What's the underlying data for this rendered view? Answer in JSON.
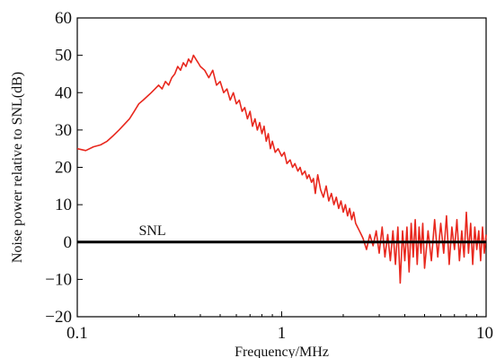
{
  "chart_data": {
    "type": "line",
    "xlabel": "Frequency/MHz",
    "ylabel": "Noise power relative to SNL(dB)",
    "xscale": "log",
    "xlim": [
      0.1,
      10
    ],
    "ylim": [
      -20,
      60
    ],
    "xticks": [
      0.1,
      1,
      10
    ],
    "xtick_labels": [
      "0.1",
      "1",
      "10"
    ],
    "yticks": [
      -20,
      -10,
      0,
      10,
      20,
      30,
      40,
      50,
      60
    ],
    "ytick_labels": [
      "−20",
      "−10",
      "0",
      "10",
      "20",
      "30",
      "40",
      "50",
      "60"
    ],
    "grid": false,
    "legend": "none",
    "colors": {
      "series": "#e8281e",
      "reference": "#000000"
    },
    "series": [
      {
        "x": [
          0.1,
          0.11,
          0.12,
          0.13,
          0.14,
          0.15,
          0.16,
          0.17,
          0.18,
          0.19,
          0.2,
          0.21,
          0.22,
          0.23,
          0.24,
          0.25,
          0.26,
          0.27,
          0.28,
          0.29,
          0.3,
          0.31,
          0.32,
          0.33,
          0.34,
          0.35,
          0.36,
          0.37,
          0.38,
          0.39,
          0.4,
          0.42,
          0.44,
          0.46,
          0.48,
          0.5,
          0.52,
          0.54,
          0.56,
          0.58,
          0.6,
          0.62,
          0.64,
          0.66,
          0.68,
          0.7,
          0.72,
          0.74,
          0.76,
          0.78,
          0.8,
          0.82,
          0.84,
          0.86,
          0.88,
          0.9,
          0.93,
          0.96,
          1.0,
          1.03,
          1.06,
          1.1,
          1.13,
          1.16,
          1.2,
          1.23,
          1.26,
          1.3,
          1.33,
          1.36,
          1.4,
          1.43,
          1.46,
          1.5,
          1.55,
          1.6,
          1.65,
          1.7,
          1.75,
          1.8,
          1.85,
          1.9,
          1.95,
          2.0,
          2.05,
          2.1,
          2.15,
          2.2,
          2.25,
          2.3,
          2.35,
          2.4,
          2.45,
          2.5,
          2.6,
          2.7,
          2.8,
          2.9,
          3.0,
          3.1,
          3.2,
          3.3,
          3.4,
          3.5,
          3.6,
          3.7,
          3.8,
          3.9,
          4.0,
          4.1,
          4.2,
          4.3,
          4.4,
          4.5,
          4.6,
          4.7,
          4.8,
          4.9,
          5.0,
          5.2,
          5.4,
          5.6,
          5.8,
          6.0,
          6.2,
          6.4,
          6.6,
          6.8,
          7.0,
          7.2,
          7.4,
          7.6,
          7.8,
          8.0,
          8.2,
          8.4,
          8.6,
          8.8,
          9.0,
          9.2,
          9.4,
          9.6,
          9.8,
          10.0
        ],
        "y": [
          25,
          24.5,
          25.5,
          26,
          27,
          28.5,
          30,
          31.5,
          33,
          35,
          37,
          38,
          39,
          40,
          41,
          42,
          41,
          43,
          42,
          44,
          45,
          47,
          46,
          48,
          47,
          49,
          48,
          50,
          49,
          48,
          47,
          46,
          44,
          46,
          42,
          43,
          40,
          41,
          38,
          40,
          37,
          38,
          35,
          36,
          33,
          35,
          31,
          33,
          30,
          32,
          29,
          31,
          27,
          29,
          25,
          27,
          24,
          25,
          23,
          24,
          21,
          22,
          20,
          21,
          19,
          20,
          18,
          19,
          17,
          18,
          16,
          17,
          13,
          18,
          14,
          12,
          15,
          11,
          13,
          10,
          12,
          9,
          11,
          8,
          10,
          7,
          9,
          6,
          8,
          5,
          4,
          3,
          2,
          1,
          -2,
          2,
          -1,
          3,
          -3,
          4,
          -4,
          2,
          -5,
          3,
          -6,
          4,
          -11,
          3,
          -5,
          4,
          -8,
          5,
          -4,
          6,
          -6,
          4,
          -3,
          5,
          -7,
          3,
          -5,
          6,
          -4,
          5,
          -3,
          7,
          -6,
          4,
          -2,
          6,
          -5,
          3,
          -4,
          8,
          -3,
          5,
          -6,
          4,
          -2,
          3,
          -5,
          4,
          -3,
          2
        ]
      }
    ],
    "reference_line": {
      "y": 0,
      "label": "SNL"
    }
  }
}
